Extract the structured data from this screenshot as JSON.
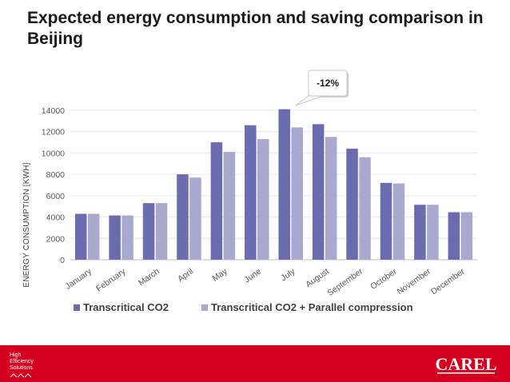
{
  "title": "Expected energy consumption and saving comparison in Beijing",
  "callout": "-12%",
  "chart_data": {
    "type": "bar",
    "title": "Expected energy consumption and saving comparison in Beijing",
    "xlabel": "",
    "ylabel": "ENERGY CONSUMPTION [KWH]",
    "ylim": [
      0,
      14000
    ],
    "yticks": [
      0,
      2000,
      4000,
      6000,
      8000,
      10000,
      12000,
      14000
    ],
    "categories": [
      "January",
      "February",
      "March",
      "April",
      "May",
      "June",
      "July",
      "August",
      "September",
      "October",
      "November",
      "December"
    ],
    "series": [
      {
        "name": "Transcritical CO2",
        "color": "#6b6bb0",
        "values": [
          4300,
          4150,
          5300,
          8000,
          11000,
          12600,
          14100,
          12700,
          10400,
          7200,
          5150,
          4450
        ]
      },
      {
        "name": "Transcritical CO2 + Parallel compression",
        "color": "#a9a9cf",
        "values": [
          4300,
          4150,
          5300,
          7700,
          10100,
          11300,
          12400,
          11500,
          9600,
          7150,
          5150,
          4450
        ]
      }
    ],
    "grid": true,
    "legend": "bottom-left",
    "annotation": {
      "text": "-12%",
      "category": "July"
    }
  },
  "footer": {
    "tagline": [
      "High",
      "Efficiency",
      "Solutions"
    ],
    "brand": "CAREL",
    "color": "#d4001f"
  }
}
